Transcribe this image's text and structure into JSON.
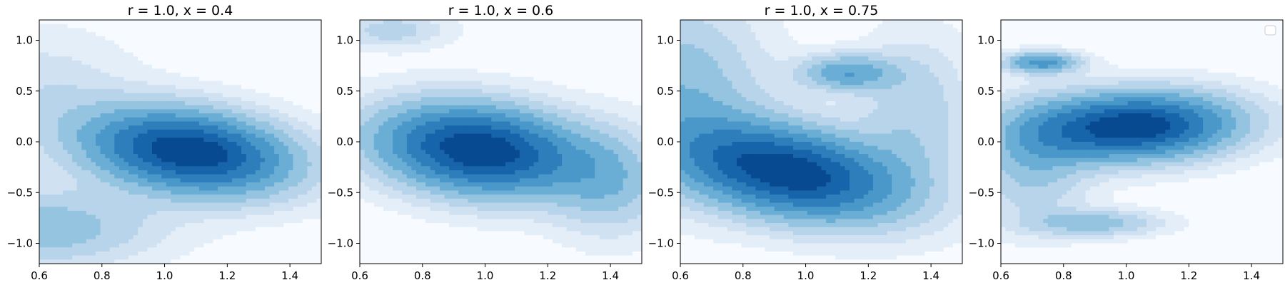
{
  "chart_data": [
    {
      "type": "contour",
      "title": "r = 1.0, x = 0.4",
      "xlim": [
        0.6,
        1.5
      ],
      "ylim": [
        -1.2,
        1.2
      ],
      "xticks": [
        "0.6",
        "0.8",
        "1.0",
        "1.2",
        "1.4"
      ],
      "yticks": [
        "1.0",
        "0.5",
        "0.0",
        "−0.5",
        "−1.0"
      ],
      "peaks": [
        {
          "x": 1.08,
          "y": -0.1,
          "a": 1.0,
          "sx": 0.22,
          "sy": 0.28,
          "rho": -0.25
        },
        {
          "x": 0.6,
          "y": -0.85,
          "a": 0.3,
          "sx": 0.25,
          "sy": 0.25,
          "rho": 0.0
        },
        {
          "x": 0.6,
          "y": 0.5,
          "a": 0.12,
          "sx": 0.2,
          "sy": 0.4,
          "rho": 0.0
        }
      ],
      "legend": false
    },
    {
      "type": "contour",
      "title": "r = 1.0, x = 0.6",
      "xlim": [
        0.6,
        1.5
      ],
      "ylim": [
        -1.2,
        1.2
      ],
      "xticks": [
        "0.6",
        "0.8",
        "1.0",
        "1.2",
        "1.4"
      ],
      "yticks": [
        "1.0",
        "0.5",
        "0.0",
        "−0.5",
        "−1.0"
      ],
      "peaks": [
        {
          "x": 0.98,
          "y": -0.08,
          "a": 1.0,
          "sx": 0.22,
          "sy": 0.3,
          "rho": -0.2
        },
        {
          "x": 0.7,
          "y": 1.1,
          "a": 0.18,
          "sx": 0.12,
          "sy": 0.12,
          "rho": 0.0
        },
        {
          "x": 1.4,
          "y": -0.4,
          "a": 0.25,
          "sx": 0.12,
          "sy": 0.35,
          "rho": 0.0
        }
      ],
      "legend": false
    },
    {
      "type": "contour",
      "title": "r = 1.0, x = 0.75",
      "xlim": [
        0.6,
        1.5
      ],
      "ylim": [
        -1.2,
        1.2
      ],
      "xticks": [
        "0.6",
        "0.8",
        "1.0",
        "1.2",
        "1.4"
      ],
      "yticks": [
        "1.0",
        "0.5",
        "0.0",
        "−0.5",
        "−1.0"
      ],
      "peaks": [
        {
          "x": 0.95,
          "y": -0.3,
          "a": 1.0,
          "sx": 0.24,
          "sy": 0.32,
          "rho": -0.35
        },
        {
          "x": 1.13,
          "y": 0.68,
          "a": 0.42,
          "sx": 0.1,
          "sy": 0.12,
          "rho": 0.0
        },
        {
          "x": 0.6,
          "y": 0.5,
          "a": 0.3,
          "sx": 0.18,
          "sy": 0.6,
          "rho": 0.0
        },
        {
          "x": 1.35,
          "y": 0.3,
          "a": 0.2,
          "sx": 0.12,
          "sy": 0.5,
          "rho": 0.0
        }
      ],
      "legend": false
    },
    {
      "type": "contour",
      "title": "",
      "xlim": [
        0.6,
        1.5
      ],
      "ylim": [
        -1.2,
        1.2
      ],
      "xticks": [
        "0.6",
        "0.8",
        "1.0",
        "1.2",
        "1.4"
      ],
      "yticks": [
        "1.0",
        "0.5",
        "0.0",
        "−0.5",
        "−1.0"
      ],
      "peaks": [
        {
          "x": 1.02,
          "y": 0.15,
          "a": 1.0,
          "sx": 0.22,
          "sy": 0.22,
          "rho": 0.1
        },
        {
          "x": 0.73,
          "y": 0.78,
          "a": 0.5,
          "sx": 0.08,
          "sy": 0.07,
          "rho": 0.0
        },
        {
          "x": 0.9,
          "y": -0.8,
          "a": 0.28,
          "sx": 0.14,
          "sy": 0.09,
          "rho": 0.0
        },
        {
          "x": 0.7,
          "y": -0.2,
          "a": 0.25,
          "sx": 0.12,
          "sy": 0.4,
          "rho": 0.0
        }
      ],
      "legend": true
    }
  ],
  "colors": {
    "levels": [
      "#f7fbff",
      "#e3eef9",
      "#d0e1f2",
      "#b7d4ea",
      "#94c4df",
      "#6aaed6",
      "#4a98c9",
      "#2e7ebc",
      "#1764ab",
      "#084a91"
    ]
  }
}
